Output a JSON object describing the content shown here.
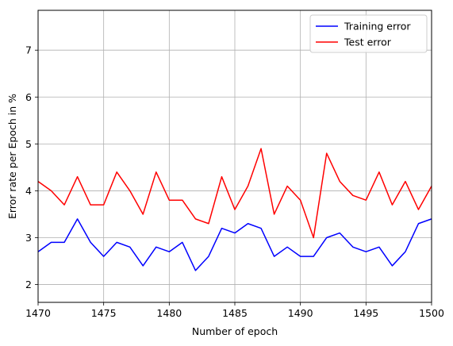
{
  "chart_data": {
    "type": "line",
    "title": "",
    "xlabel": "Number of epoch",
    "ylabel": "Error rate per Epoch in %",
    "xlim": [
      1470,
      1500
    ],
    "ylim": [
      1.62,
      7.85
    ],
    "xticks": [
      1470,
      1475,
      1480,
      1485,
      1490,
      1495,
      1500
    ],
    "yticks": [
      2,
      3,
      4,
      5,
      6,
      7
    ],
    "grid": true,
    "legend_position": "top-right",
    "x": [
      1470,
      1471,
      1472,
      1473,
      1474,
      1475,
      1476,
      1477,
      1478,
      1479,
      1480,
      1481,
      1482,
      1483,
      1484,
      1485,
      1486,
      1487,
      1488,
      1489,
      1490,
      1491,
      1492,
      1493,
      1494,
      1495,
      1496,
      1497,
      1498,
      1499,
      1500
    ],
    "series": [
      {
        "name": "Training error",
        "color": "#0000ff",
        "values": [
          2.7,
          2.9,
          2.9,
          3.4,
          2.9,
          2.6,
          2.9,
          2.8,
          2.4,
          2.8,
          2.7,
          2.9,
          2.3,
          2.6,
          3.2,
          3.1,
          3.3,
          3.2,
          2.6,
          2.8,
          2.6,
          2.6,
          3.0,
          3.1,
          2.8,
          2.7,
          2.8,
          2.4,
          2.7,
          3.3,
          3.4
        ]
      },
      {
        "name": "Test error",
        "color": "#ff0000",
        "values": [
          4.2,
          4.0,
          3.7,
          4.3,
          3.7,
          3.7,
          4.4,
          4.0,
          3.5,
          4.4,
          3.8,
          3.8,
          3.4,
          3.3,
          4.3,
          3.6,
          4.1,
          4.9,
          3.5,
          4.1,
          3.8,
          3.0,
          4.8,
          4.2,
          3.9,
          3.8,
          4.4,
          3.7,
          4.2,
          3.6,
          4.1
        ]
      }
    ]
  }
}
